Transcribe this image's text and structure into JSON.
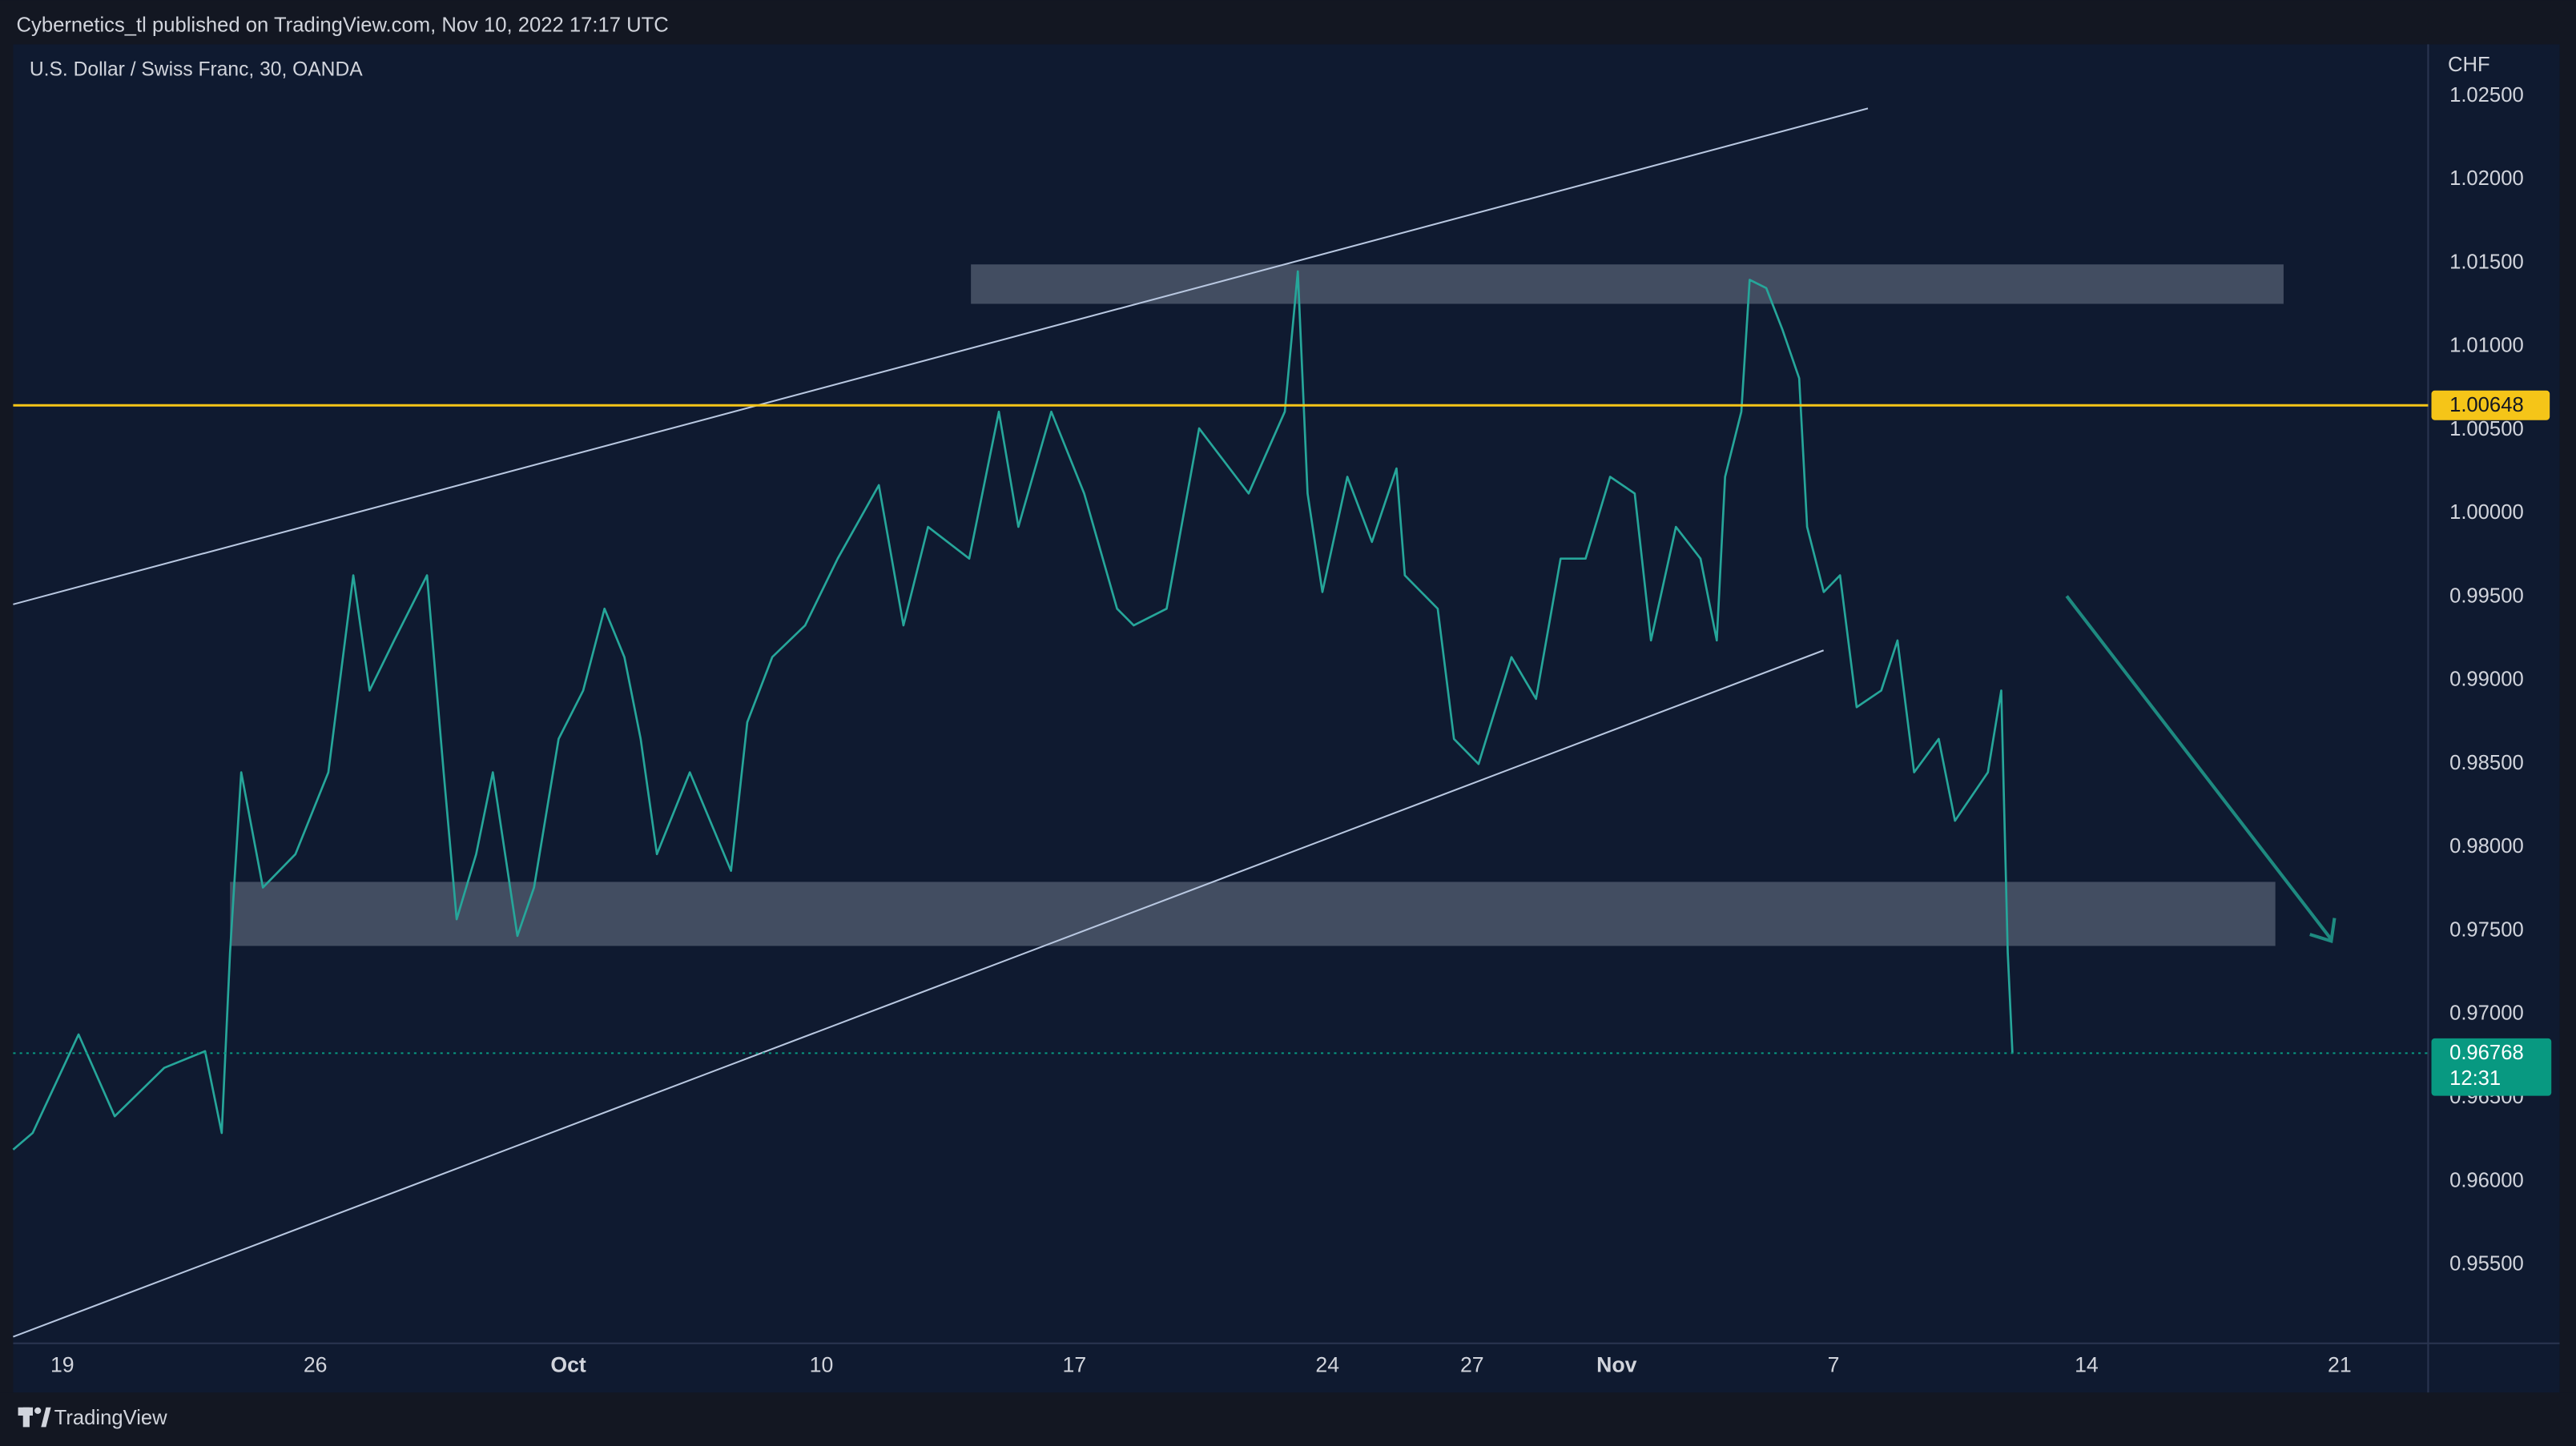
{
  "header": {
    "publisher": "Cybernetics_tl published on TradingView.com, Nov 10, 2022 17:17 UTC"
  },
  "footer": {
    "brand": "TradingView"
  },
  "chart_data": {
    "type": "line",
    "title": "U.S. Dollar / Swiss Franc, 30, OANDA",
    "y_axis_label": "CHF",
    "color": "#26a69a",
    "x": [
      -1.36,
      -0.82,
      0.45,
      1.45,
      2.82,
      3.95,
      4.41,
      4.64,
      4.95,
      5.55,
      6.45,
      7.36,
      8.05,
      8.5,
      9.18,
      10.09,
      10.55,
      10.91,
      11.45,
      11.91,
      12.59,
      13.05,
      13.73,
      14.41,
      15,
      15.55,
      16,
      16.45,
      17.36,
      18.5,
      18.95,
      19.64,
      20.55,
      21.45,
      22.59,
      23.27,
      23.95,
      25.09,
      25.91,
      26.45,
      27.36,
      28.27,
      29.18,
      29.64,
      30.55,
      31.45,
      32.82,
      33.82,
      34.18,
      34.45,
      34.86,
      35.55,
      36.23,
      36.91,
      37.14,
      38.05,
      38.5,
      39.18,
      40.09,
      40.77,
      41.45,
      42.14,
      42.82,
      43.5,
      43.95,
      44.64,
      45.32,
      45.77,
      46,
      46.45,
      46.68,
      47.14,
      47.59,
      48.05,
      48.27,
      48.73,
      49.18,
      49.64,
      50.32,
      50.77,
      51.23,
      51.91,
      52.36,
      53.27,
      53.64,
      53.82,
      53.95
    ],
    "values": [
      0.9619,
      0.9629,
      0.9688,
      0.9639,
      0.9668,
      0.9678,
      0.9629,
      0.9737,
      0.9845,
      0.9776,
      0.9796,
      0.9845,
      0.9963,
      0.9894,
      0.9924,
      0.9963,
      0.9845,
      0.9757,
      0.9796,
      0.9845,
      0.9747,
      0.9776,
      0.9865,
      0.9894,
      0.9943,
      0.9914,
      0.9865,
      0.9796,
      0.9845,
      0.9786,
      0.9875,
      0.9914,
      0.9933,
      0.9973,
      1.0017,
      0.9933,
      0.9992,
      0.9973,
      1.0061,
      0.9992,
      1.0061,
      1.0012,
      0.9943,
      0.9933,
      0.9943,
      1.0051,
      1.0012,
      1.0061,
      1.0145,
      1.0012,
      0.9953,
      1.0022,
      0.9983,
      1.0027,
      0.9963,
      0.9943,
      0.9865,
      0.985,
      0.9914,
      0.9889,
      0.9973,
      0.9973,
      1.0022,
      1.0012,
      0.9924,
      0.9992,
      0.9973,
      0.9924,
      1.0022,
      1.0061,
      1.014,
      1.0135,
      1.011,
      1.0081,
      0.9992,
      0.9953,
      0.9963,
      0.9884,
      0.9894,
      0.9924,
      0.9845,
      0.9865,
      0.9816,
      0.9845,
      0.9894,
      0.9737,
      0.96768
    ],
    "xlim": [
      -1.36,
      65.45
    ],
    "xticks": [
      {
        "value": 0,
        "label": "19"
      },
      {
        "value": 7,
        "label": "26"
      },
      {
        "value": 14,
        "label": "Oct"
      },
      {
        "value": 21,
        "label": "10"
      },
      {
        "value": 28,
        "label": "17"
      },
      {
        "value": 35,
        "label": "24"
      },
      {
        "value": 39,
        "label": "27"
      },
      {
        "value": 43,
        "label": "Nov"
      },
      {
        "value": 49,
        "label": "7"
      },
      {
        "value": 56,
        "label": "14"
      },
      {
        "value": 63,
        "label": "21"
      }
    ],
    "ylim": [
      0.9503,
      1.0281
    ],
    "yticks": [
      {
        "value": 0.955,
        "label": "0.95500"
      },
      {
        "value": 0.96,
        "label": "0.96000"
      },
      {
        "value": 0.965,
        "label": "0.96500"
      },
      {
        "value": 0.97,
        "label": "0.97000"
      },
      {
        "value": 0.975,
        "label": "0.97500"
      },
      {
        "value": 0.98,
        "label": "0.98000"
      },
      {
        "value": 0.985,
        "label": "0.98500"
      },
      {
        "value": 0.99,
        "label": "0.99000"
      },
      {
        "value": 0.995,
        "label": "0.99500"
      },
      {
        "value": 1,
        "label": "1.00000"
      },
      {
        "value": 1.005,
        "label": "1.00500"
      },
      {
        "value": 1.01,
        "label": "1.01000"
      },
      {
        "value": 1.015,
        "label": "1.01500"
      },
      {
        "value": 1.02,
        "label": "1.02000"
      },
      {
        "value": 1.025,
        "label": "1.02500"
      }
    ],
    "reference_line": {
      "value": 1.00648,
      "color": "#f5c518"
    },
    "last_price": {
      "value": 0.96768,
      "countdown": "12:31",
      "color": "#089981"
    }
  }
}
